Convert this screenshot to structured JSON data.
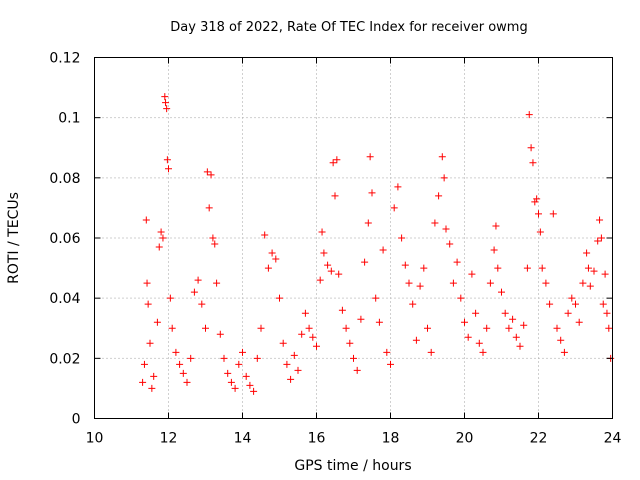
{
  "chart_data": {
    "type": "scatter",
    "title": "Day 318 of 2022, Rate Of TEC Index for receiver owmg",
    "xlabel": "GPS time / hours",
    "ylabel": "ROTI / TECUs",
    "xlim": [
      10,
      24
    ],
    "ylim": [
      0,
      0.12
    ],
    "x_ticks": [
      10,
      12,
      14,
      16,
      18,
      20,
      22,
      24
    ],
    "x_tick_labels": [
      "10",
      "12",
      "14",
      "16",
      "18",
      "20",
      "22",
      "24"
    ],
    "y_ticks": [
      0,
      0.02,
      0.04,
      0.06,
      0.08,
      0.1,
      0.12
    ],
    "y_tick_labels": [
      "0",
      "0.02",
      "0.04",
      "0.06",
      "0.08",
      "0.1",
      "0.12"
    ],
    "grid": true,
    "marker": "plus",
    "color": "#ff0000",
    "series": [
      {
        "name": "ROTI",
        "points": [
          [
            11.3,
            0.012
          ],
          [
            11.35,
            0.018
          ],
          [
            11.4,
            0.066
          ],
          [
            11.42,
            0.045
          ],
          [
            11.45,
            0.038
          ],
          [
            11.5,
            0.025
          ],
          [
            11.55,
            0.01
          ],
          [
            11.6,
            0.014
          ],
          [
            11.7,
            0.032
          ],
          [
            11.75,
            0.057
          ],
          [
            11.8,
            0.062
          ],
          [
            11.85,
            0.06
          ],
          [
            11.9,
            0.107
          ],
          [
            11.92,
            0.105
          ],
          [
            11.95,
            0.103
          ],
          [
            11.97,
            0.086
          ],
          [
            12.0,
            0.083
          ],
          [
            12.05,
            0.04
          ],
          [
            12.1,
            0.03
          ],
          [
            12.2,
            0.022
          ],
          [
            12.3,
            0.018
          ],
          [
            12.4,
            0.015
          ],
          [
            12.5,
            0.012
          ],
          [
            12.6,
            0.02
          ],
          [
            12.7,
            0.042
          ],
          [
            12.8,
            0.046
          ],
          [
            12.9,
            0.038
          ],
          [
            13.0,
            0.03
          ],
          [
            13.05,
            0.082
          ],
          [
            13.1,
            0.07
          ],
          [
            13.15,
            0.081
          ],
          [
            13.2,
            0.06
          ],
          [
            13.25,
            0.058
          ],
          [
            13.3,
            0.045
          ],
          [
            13.4,
            0.028
          ],
          [
            13.5,
            0.02
          ],
          [
            13.6,
            0.015
          ],
          [
            13.7,
            0.012
          ],
          [
            13.8,
            0.01
          ],
          [
            13.9,
            0.018
          ],
          [
            14.0,
            0.022
          ],
          [
            14.1,
            0.014
          ],
          [
            14.2,
            0.011
          ],
          [
            14.3,
            0.009
          ],
          [
            14.4,
            0.02
          ],
          [
            14.5,
            0.03
          ],
          [
            14.6,
            0.061
          ],
          [
            14.7,
            0.05
          ],
          [
            14.8,
            0.055
          ],
          [
            14.9,
            0.053
          ],
          [
            15.0,
            0.04
          ],
          [
            15.1,
            0.025
          ],
          [
            15.2,
            0.018
          ],
          [
            15.3,
            0.013
          ],
          [
            15.4,
            0.021
          ],
          [
            15.5,
            0.016
          ],
          [
            15.6,
            0.028
          ],
          [
            15.7,
            0.035
          ],
          [
            15.8,
            0.03
          ],
          [
            15.9,
            0.027
          ],
          [
            16.0,
            0.024
          ],
          [
            16.1,
            0.046
          ],
          [
            16.15,
            0.062
          ],
          [
            16.2,
            0.055
          ],
          [
            16.3,
            0.051
          ],
          [
            16.4,
            0.049
          ],
          [
            16.45,
            0.085
          ],
          [
            16.5,
            0.074
          ],
          [
            16.55,
            0.086
          ],
          [
            16.6,
            0.048
          ],
          [
            16.7,
            0.036
          ],
          [
            16.8,
            0.03
          ],
          [
            16.9,
            0.025
          ],
          [
            17.0,
            0.02
          ],
          [
            17.1,
            0.016
          ],
          [
            17.2,
            0.033
          ],
          [
            17.3,
            0.052
          ],
          [
            17.4,
            0.065
          ],
          [
            17.45,
            0.087
          ],
          [
            17.5,
            0.075
          ],
          [
            17.6,
            0.04
          ],
          [
            17.7,
            0.032
          ],
          [
            17.8,
            0.056
          ],
          [
            17.9,
            0.022
          ],
          [
            18.0,
            0.018
          ],
          [
            18.1,
            0.07
          ],
          [
            18.2,
            0.077
          ],
          [
            18.3,
            0.06
          ],
          [
            18.4,
            0.051
          ],
          [
            18.5,
            0.045
          ],
          [
            18.6,
            0.038
          ],
          [
            18.7,
            0.026
          ],
          [
            18.8,
            0.044
          ],
          [
            18.9,
            0.05
          ],
          [
            19.0,
            0.03
          ],
          [
            19.1,
            0.022
          ],
          [
            19.2,
            0.065
          ],
          [
            19.3,
            0.074
          ],
          [
            19.4,
            0.087
          ],
          [
            19.45,
            0.08
          ],
          [
            19.5,
            0.063
          ],
          [
            19.6,
            0.058
          ],
          [
            19.7,
            0.045
          ],
          [
            19.8,
            0.052
          ],
          [
            19.9,
            0.04
          ],
          [
            20.0,
            0.032
          ],
          [
            20.1,
            0.027
          ],
          [
            20.2,
            0.048
          ],
          [
            20.3,
            0.035
          ],
          [
            20.4,
            0.025
          ],
          [
            20.5,
            0.022
          ],
          [
            20.6,
            0.03
          ],
          [
            20.7,
            0.045
          ],
          [
            20.8,
            0.056
          ],
          [
            20.85,
            0.064
          ],
          [
            20.9,
            0.05
          ],
          [
            21.0,
            0.042
          ],
          [
            21.1,
            0.035
          ],
          [
            21.2,
            0.03
          ],
          [
            21.3,
            0.033
          ],
          [
            21.4,
            0.027
          ],
          [
            21.5,
            0.024
          ],
          [
            21.6,
            0.031
          ],
          [
            21.7,
            0.05
          ],
          [
            21.75,
            0.101
          ],
          [
            21.8,
            0.09
          ],
          [
            21.85,
            0.085
          ],
          [
            21.9,
            0.072
          ],
          [
            21.95,
            0.073
          ],
          [
            22.0,
            0.068
          ],
          [
            22.05,
            0.062
          ],
          [
            22.1,
            0.05
          ],
          [
            22.2,
            0.045
          ],
          [
            22.3,
            0.038
          ],
          [
            22.4,
            0.068
          ],
          [
            22.5,
            0.03
          ],
          [
            22.6,
            0.026
          ],
          [
            22.7,
            0.022
          ],
          [
            22.8,
            0.035
          ],
          [
            22.9,
            0.04
          ],
          [
            23.0,
            0.038
          ],
          [
            23.1,
            0.032
          ],
          [
            23.2,
            0.045
          ],
          [
            23.3,
            0.055
          ],
          [
            23.35,
            0.05
          ],
          [
            23.4,
            0.044
          ],
          [
            23.5,
            0.049
          ],
          [
            23.6,
            0.059
          ],
          [
            23.65,
            0.066
          ],
          [
            23.7,
            0.06
          ],
          [
            23.75,
            0.038
          ],
          [
            23.8,
            0.048
          ],
          [
            23.85,
            0.035
          ],
          [
            23.9,
            0.03
          ],
          [
            23.95,
            0.02
          ]
        ]
      }
    ]
  }
}
